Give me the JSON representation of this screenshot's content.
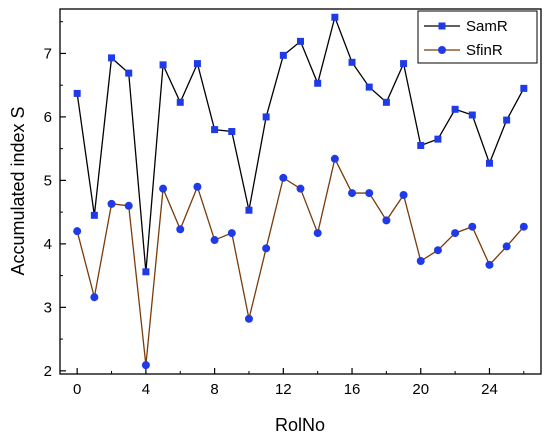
{
  "chart_data": {
    "type": "line",
    "title": "",
    "xlabel": "RolNo",
    "ylabel": "Accumulated index S",
    "xlim": [
      -1,
      27
    ],
    "ylim": [
      1.95,
      7.7
    ],
    "x_ticks": [
      0,
      4,
      8,
      12,
      16,
      20,
      24
    ],
    "y_ticks": [
      2,
      3,
      4,
      5,
      6,
      7
    ],
    "grid": false,
    "legend_position": "top-right",
    "x": [
      0,
      1,
      2,
      3,
      4,
      5,
      6,
      7,
      8,
      9,
      10,
      11,
      12,
      13,
      14,
      15,
      16,
      17,
      18,
      19,
      20,
      21,
      22,
      23,
      24,
      25,
      26
    ],
    "series": [
      {
        "name": "SamR",
        "line_color": "#000000",
        "marker": "square",
        "marker_color": "#1f3be8",
        "values": [
          6.37,
          4.45,
          6.93,
          6.69,
          3.56,
          6.82,
          6.23,
          6.84,
          5.8,
          5.77,
          4.53,
          6.0,
          6.97,
          7.19,
          6.53,
          7.57,
          6.86,
          6.47,
          6.23,
          6.84,
          5.55,
          5.65,
          6.12,
          6.03,
          5.27,
          5.95,
          6.45
        ]
      },
      {
        "name": "SfinR",
        "line_color": "#7a3b0a",
        "marker": "circle",
        "marker_color": "#1f3be8",
        "values": [
          4.2,
          3.16,
          4.63,
          4.6,
          2.09,
          4.87,
          4.23,
          4.9,
          4.06,
          4.17,
          2.82,
          3.93,
          5.04,
          4.87,
          4.17,
          5.34,
          4.8,
          4.8,
          4.37,
          4.77,
          3.73,
          3.9,
          4.17,
          4.27,
          3.67,
          3.96,
          4.27
        ]
      }
    ]
  }
}
